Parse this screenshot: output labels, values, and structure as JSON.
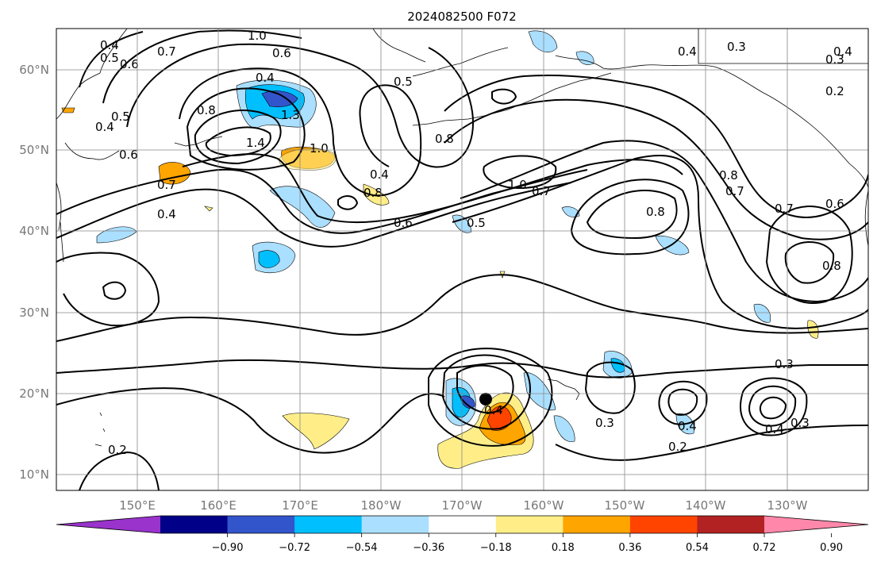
{
  "title": "2024082500 F072",
  "lat_labels": [
    "60°N",
    "50°N",
    "40°N",
    "30°N",
    "20°N",
    "10°N"
  ],
  "lon_labels": [
    "150°E",
    "160°E",
    "170°E",
    "180°W",
    "170°W",
    "160°W",
    "150°W",
    "140°W",
    "130°W"
  ],
  "contour_labels": [
    "1.0",
    "0.6",
    "0.4",
    "0.5",
    "0.6",
    "0.7",
    "0.4",
    "0.5",
    "0.4",
    "0.8",
    "1.4",
    "1.0",
    "0.6",
    "0.7",
    "0.4",
    "0.5",
    "0.8",
    "0.4",
    "0.8",
    "1.0",
    "0.7",
    "0.6",
    "0.5",
    "0.3",
    "0.4",
    "0.3",
    "0.4",
    "0.2",
    "0.8",
    "0.7",
    "0.8",
    "0.7",
    "0.6",
    "0.8",
    "0.3",
    "0.3",
    "0.4",
    "0.4",
    "0.2",
    "0.4",
    "0.3",
    "0.2",
    "1.3"
  ],
  "colorbar": {
    "colors": [
      "#9933cc",
      "#000088",
      "#3355cc",
      "#00bfff",
      "#aadfff",
      "#ffffff",
      "#ffee88",
      "#ffa500",
      "#ff4400",
      "#b22222",
      "#ff88aa"
    ],
    "tick_labels": [
      "−0.90",
      "−0.72",
      "−0.54",
      "−0.36",
      "−0.18",
      "0.18",
      "0.36",
      "0.54",
      "0.72",
      "0.90"
    ]
  }
}
